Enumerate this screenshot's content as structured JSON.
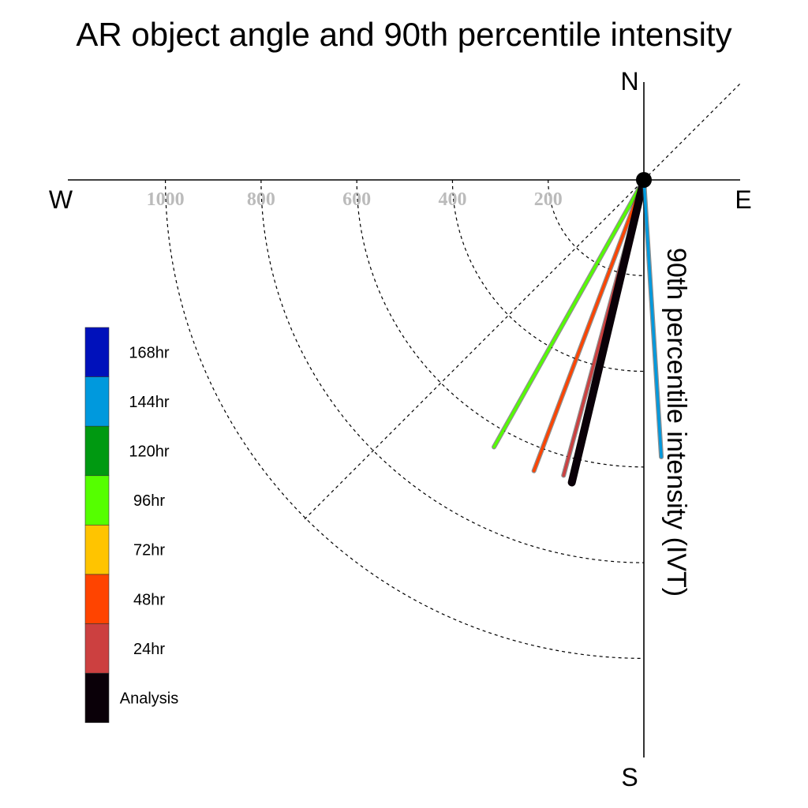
{
  "chart_data": {
    "type": "polar-vector",
    "title": "AR object angle and 90th percentile intensity",
    "ylabel": "90th percentile intensity (IVT)",
    "compass": {
      "north": "N",
      "south": "S",
      "east": "E",
      "west": "W"
    },
    "radial_ticks": [
      200,
      400,
      600,
      800,
      1000
    ],
    "radial_tick_labels": [
      "200",
      "400",
      "600",
      "800",
      "1000"
    ],
    "rmax": 1200,
    "angle_convention": "degrees clockwise from north",
    "series": [
      {
        "name": "96hr",
        "color": "#55ff00",
        "angle_deg": 209.3,
        "intensity": 640
      },
      {
        "name": "48hr",
        "color": "#ff4400",
        "angle_deg": 200.7,
        "intensity": 650
      },
      {
        "name": "24hr",
        "color": "#cc4040",
        "angle_deg": 195.2,
        "intensity": 640
      },
      {
        "name": "Analysis",
        "color": "#0a0008",
        "angle_deg": 193.4,
        "intensity": 650
      },
      {
        "name": "144hr",
        "color": "#0099dd",
        "angle_deg": 176.4,
        "intensity": 580
      }
    ],
    "legend": [
      {
        "label": "168hr",
        "color": "#0011bb"
      },
      {
        "label": "144hr",
        "color": "#0099dd"
      },
      {
        "label": "120hr",
        "color": "#009911"
      },
      {
        "label": "96hr",
        "color": "#55ff00"
      },
      {
        "label": "72hr",
        "color": "#ffc400"
      },
      {
        "label": "48hr",
        "color": "#ff4400"
      },
      {
        "label": "24hr",
        "color": "#cc4040"
      },
      {
        "label": "Analysis",
        "color": "#0a0008"
      }
    ],
    "legend_placement": "left"
  }
}
